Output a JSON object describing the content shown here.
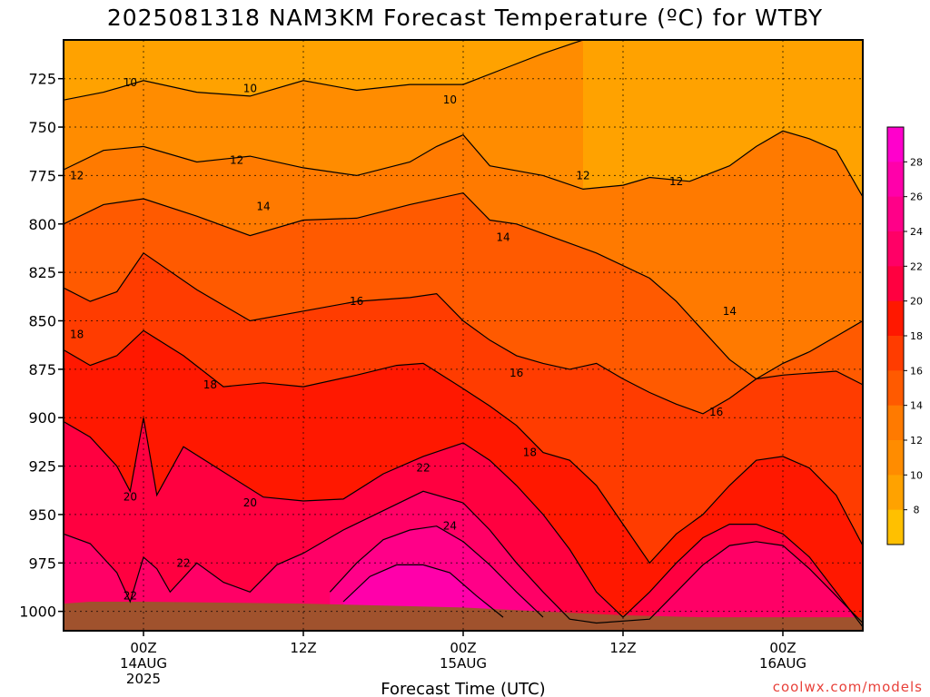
{
  "chart_data": {
    "type": "heatmap",
    "title": "2025081318 NAM3KM Forecast Temperature (ºC) for WTBY",
    "xlabel": "Forecast Time (UTC)",
    "ylabel": "",
    "y_axis": {
      "reversed": true,
      "ylim": [
        1010,
        705
      ],
      "ticks": [
        725,
        750,
        775,
        800,
        825,
        850,
        875,
        900,
        925,
        950,
        975,
        1000
      ],
      "grid": true
    },
    "x_axis": {
      "xlim": [
        -6,
        54
      ],
      "ticks": [
        {
          "h": 0,
          "lines": [
            "00Z",
            "14AUG",
            "2025"
          ]
        },
        {
          "h": 12,
          "lines": [
            "12Z"
          ]
        },
        {
          "h": 24,
          "lines": [
            "00Z",
            "15AUG"
          ]
        },
        {
          "h": 36,
          "lines": [
            "12Z"
          ]
        },
        {
          "h": 48,
          "lines": [
            "00Z",
            "16AUG"
          ]
        }
      ],
      "grid": true
    },
    "levels": [
      6,
      8,
      10,
      12,
      14,
      16,
      18,
      20,
      22,
      24,
      26,
      28
    ],
    "colorbar": {
      "labels": [
        "8",
        "10",
        "12",
        "14",
        "16",
        "18",
        "20",
        "22",
        "24",
        "26",
        "28"
      ],
      "colors": [
        "#ffc000",
        "#ffa200",
        "#ff8c00",
        "#ff7a00",
        "#ff5a00",
        "#ff3c00",
        "#ff1800",
        "#ff0040",
        "#ff0066",
        "#ff0088",
        "#ff00aa",
        "#ff00cc"
      ]
    },
    "isotherms": [
      {
        "value": 10,
        "points": [
          [
            -6,
            736
          ],
          [
            -3,
            732
          ],
          [
            0,
            726
          ],
          [
            4,
            732
          ],
          [
            8,
            734
          ],
          [
            12,
            726
          ],
          [
            16,
            731
          ],
          [
            20,
            728
          ],
          [
            24,
            728
          ],
          [
            27,
            720
          ],
          [
            30,
            712
          ],
          [
            33,
            705
          ]
        ]
      },
      {
        "value": 12,
        "points": [
          [
            -6,
            772
          ],
          [
            -3,
            762
          ],
          [
            0,
            760
          ],
          [
            4,
            768
          ],
          [
            8,
            765
          ],
          [
            12,
            771
          ],
          [
            16,
            775
          ],
          [
            20,
            768
          ],
          [
            22,
            760
          ],
          [
            24,
            754
          ],
          [
            26,
            770
          ],
          [
            30,
            775
          ],
          [
            33,
            782
          ],
          [
            36,
            780
          ],
          [
            38,
            776
          ],
          [
            41,
            778
          ],
          [
            44,
            770
          ],
          [
            46,
            760
          ],
          [
            48,
            752
          ],
          [
            50,
            756
          ],
          [
            52,
            762
          ],
          [
            54,
            786
          ]
        ]
      },
      {
        "value": 14,
        "points": [
          [
            -6,
            800
          ],
          [
            -3,
            790
          ],
          [
            0,
            787
          ],
          [
            4,
            796
          ],
          [
            8,
            806
          ],
          [
            12,
            798
          ],
          [
            16,
            797
          ],
          [
            20,
            790
          ],
          [
            24,
            784
          ],
          [
            26,
            798
          ],
          [
            28,
            800
          ],
          [
            30,
            805
          ],
          [
            34,
            815
          ],
          [
            38,
            828
          ],
          [
            40,
            840
          ],
          [
            42,
            855
          ],
          [
            44,
            870
          ],
          [
            46,
            880
          ],
          [
            48,
            872
          ],
          [
            50,
            866
          ],
          [
            52,
            858
          ],
          [
            54,
            850
          ]
        ]
      },
      {
        "value": 16,
        "points": [
          [
            -6,
            833
          ],
          [
            -4,
            840
          ],
          [
            -2,
            835
          ],
          [
            0,
            815
          ],
          [
            4,
            834
          ],
          [
            8,
            850
          ],
          [
            12,
            845
          ],
          [
            16,
            840
          ],
          [
            20,
            838
          ],
          [
            22,
            836
          ],
          [
            24,
            850
          ],
          [
            26,
            860
          ],
          [
            28,
            868
          ],
          [
            30,
            872
          ],
          [
            32,
            875
          ],
          [
            34,
            872
          ],
          [
            36,
            880
          ],
          [
            38,
            887
          ],
          [
            40,
            893
          ],
          [
            42,
            898
          ],
          [
            44,
            890
          ],
          [
            46,
            880
          ],
          [
            48,
            878
          ],
          [
            50,
            877
          ],
          [
            52,
            876
          ],
          [
            54,
            883
          ]
        ]
      },
      {
        "value": 18,
        "points": [
          [
            -6,
            865
          ],
          [
            -4,
            873
          ],
          [
            -2,
            868
          ],
          [
            0,
            855
          ],
          [
            3,
            868
          ],
          [
            6,
            884
          ],
          [
            9,
            882
          ],
          [
            12,
            884
          ],
          [
            16,
            878
          ],
          [
            19,
            873
          ],
          [
            21,
            872
          ],
          [
            24,
            885
          ],
          [
            26,
            894
          ],
          [
            28,
            904
          ],
          [
            30,
            918
          ],
          [
            32,
            922
          ],
          [
            34,
            935
          ],
          [
            36,
            955
          ],
          [
            38,
            975
          ],
          [
            40,
            960
          ],
          [
            42,
            950
          ],
          [
            44,
            935
          ],
          [
            46,
            922
          ],
          [
            48,
            920
          ],
          [
            50,
            926
          ],
          [
            52,
            940
          ],
          [
            54,
            966
          ]
        ]
      },
      {
        "value": 20,
        "points": [
          [
            -6,
            902
          ],
          [
            -4,
            910
          ],
          [
            -2,
            925
          ],
          [
            -1,
            938
          ],
          [
            0,
            900
          ],
          [
            1,
            940
          ],
          [
            3,
            915
          ],
          [
            6,
            928
          ],
          [
            9,
            941
          ],
          [
            12,
            943
          ],
          [
            15,
            942
          ],
          [
            18,
            929
          ],
          [
            21,
            920
          ],
          [
            24,
            913
          ],
          [
            26,
            922
          ],
          [
            28,
            935
          ],
          [
            30,
            950
          ],
          [
            32,
            968
          ],
          [
            34,
            990
          ],
          [
            36,
            1003
          ],
          [
            38,
            990
          ],
          [
            40,
            975
          ],
          [
            42,
            962
          ],
          [
            44,
            955
          ],
          [
            46,
            955
          ],
          [
            48,
            960
          ],
          [
            50,
            972
          ],
          [
            52,
            990
          ],
          [
            54,
            1008
          ]
        ]
      },
      {
        "value": 22,
        "points": [
          [
            -6,
            960
          ],
          [
            -4,
            965
          ],
          [
            -2,
            980
          ],
          [
            -1,
            995
          ],
          [
            0,
            972
          ],
          [
            1,
            978
          ],
          [
            2,
            990
          ],
          [
            4,
            975
          ],
          [
            6,
            985
          ],
          [
            8,
            990
          ],
          [
            10,
            976
          ],
          [
            12,
            970
          ],
          [
            15,
            958
          ],
          [
            18,
            948
          ],
          [
            21,
            938
          ],
          [
            24,
            944
          ],
          [
            26,
            958
          ],
          [
            28,
            975
          ],
          [
            30,
            990
          ],
          [
            32,
            1004
          ],
          [
            34,
            1006
          ],
          [
            38,
            1004
          ],
          [
            40,
            990
          ],
          [
            42,
            976
          ],
          [
            44,
            966
          ],
          [
            46,
            964
          ],
          [
            48,
            966
          ],
          [
            50,
            978
          ],
          [
            52,
            992
          ],
          [
            54,
            1006
          ]
        ]
      },
      {
        "value": 24,
        "points": [
          [
            14,
            990
          ],
          [
            16,
            975
          ],
          [
            18,
            963
          ],
          [
            20,
            958
          ],
          [
            22,
            956
          ],
          [
            24,
            964
          ],
          [
            26,
            976
          ],
          [
            28,
            990
          ],
          [
            30,
            1003
          ]
        ]
      },
      {
        "value": 26,
        "points": [
          [
            15,
            995
          ],
          [
            17,
            982
          ],
          [
            19,
            976
          ],
          [
            21,
            976
          ],
          [
            23,
            980
          ],
          [
            25,
            992
          ],
          [
            27,
            1003
          ]
        ]
      }
    ],
    "contour_labels": [
      {
        "text": "10",
        "h": -1,
        "p": 727
      },
      {
        "text": "10",
        "h": 8,
        "p": 730
      },
      {
        "text": "10",
        "h": 23,
        "p": 736
      },
      {
        "text": "12",
        "h": -5,
        "p": 775
      },
      {
        "text": "12",
        "h": 7,
        "p": 767
      },
      {
        "text": "12",
        "h": 33,
        "p": 775
      },
      {
        "text": "12",
        "h": 40,
        "p": 778
      },
      {
        "text": "14",
        "h": 9,
        "p": 791
      },
      {
        "text": "14",
        "h": 27,
        "p": 807
      },
      {
        "text": "14",
        "h": 44,
        "p": 845
      },
      {
        "text": "16",
        "h": 16,
        "p": 840
      },
      {
        "text": "16",
        "h": 28,
        "p": 877
      },
      {
        "text": "16",
        "h": 43,
        "p": 897
      },
      {
        "text": "18",
        "h": -5,
        "p": 857
      },
      {
        "text": "18",
        "h": 5,
        "p": 883
      },
      {
        "text": "18",
        "h": 29,
        "p": 918
      },
      {
        "text": "20",
        "h": -1,
        "p": 941
      },
      {
        "text": "20",
        "h": 8,
        "p": 944
      },
      {
        "text": "22",
        "h": 21,
        "p": 926
      },
      {
        "text": "22",
        "h": 3,
        "p": 975
      },
      {
        "text": "22",
        "h": -1,
        "p": 992
      },
      {
        "text": "24",
        "h": 23,
        "p": 956
      }
    ],
    "ground": {
      "color": "#a0522d",
      "points": [
        [
          -6,
          996
        ],
        [
          -4,
          995
        ],
        [
          0,
          995
        ],
        [
          12,
          996
        ],
        [
          24,
          998
        ],
        [
          30,
          1000
        ],
        [
          36,
          1002
        ],
        [
          42,
          1003
        ],
        [
          48,
          1003
        ],
        [
          54,
          1003
        ]
      ]
    },
    "credit": "coolwx.com/models"
  }
}
